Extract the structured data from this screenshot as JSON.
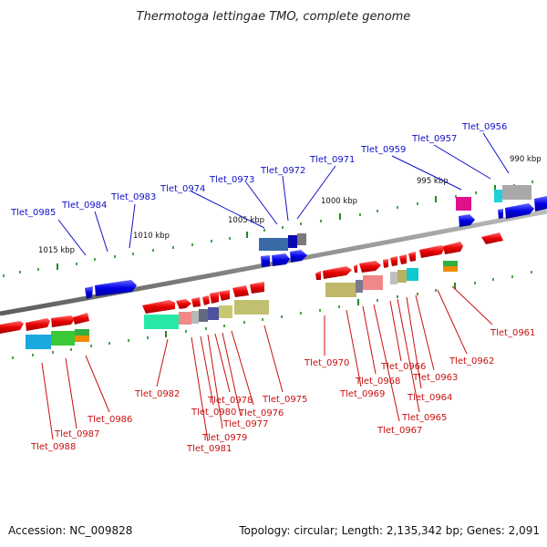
{
  "title": "Thermotoga lettingae TMO, complete genome",
  "footer": {
    "accession": "Accession: NC_009828",
    "summary": "Topology: circular; Length: 2,135,342 bp; Genes: 2,091"
  },
  "scale_labels": [
    "1015 kbp",
    "1010 kbp",
    "1005 kbp",
    "1000 kbp",
    "995 kbp",
    "990 kbp"
  ],
  "top_labels": [
    "Tlet_0985",
    "Tlet_0984",
    "Tlet_0983",
    "Tlet_0974",
    "Tlet_0973",
    "Tlet_0972",
    "Tlet_0971",
    "Tlet_0959",
    "Tlet_0957",
    "Tlet_0956"
  ],
  "bottom_labels": [
    "Tlet_0988",
    "Tlet_0987",
    "Tlet_0986",
    "Tlet_0982",
    "Tlet_0981",
    "Tlet_0980",
    "Tlet_0979",
    "Tlet_0978",
    "Tlet_0977",
    "Tlet_0976",
    "Tlet_0975",
    "Tlet_0970",
    "Tlet_0969",
    "Tlet_0968",
    "Tlet_0967",
    "Tlet_0966",
    "Tlet_0965",
    "Tlet_0964",
    "Tlet_0963",
    "Tlet_0962",
    "Tlet_0961"
  ],
  "colors": {
    "forward_strand": "#0000e6",
    "reverse_strand": "#e60000",
    "backbone": "#808080",
    "ticks": "#208a20",
    "label_top": "#1010c8",
    "label_bottom": "#c81010"
  }
}
